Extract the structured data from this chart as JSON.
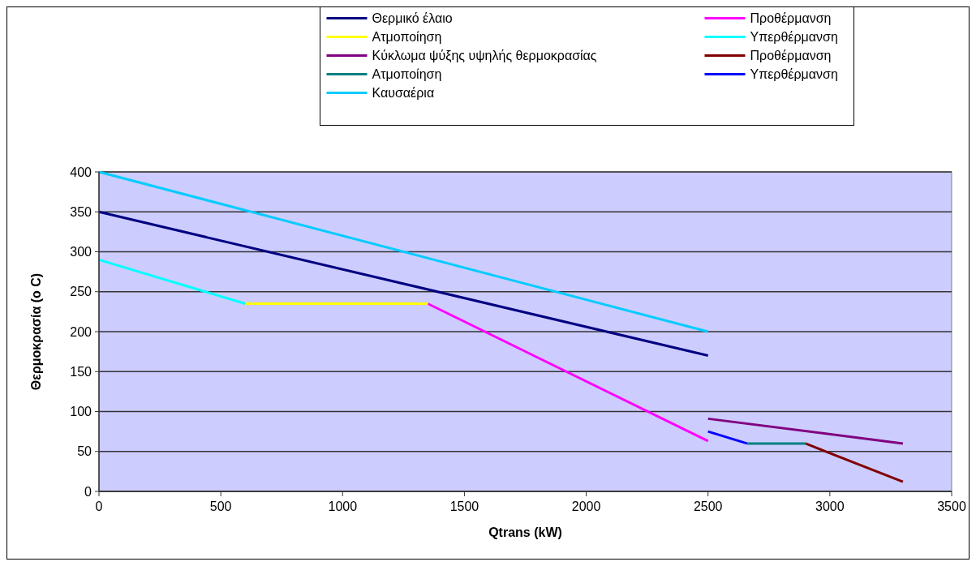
{
  "chart_data": {
    "type": "line",
    "xlabel": "Qtrans (kW)",
    "ylabel": "Θερμοκρασία (o C)",
    "xlim": [
      0,
      3500
    ],
    "xticks": [
      0,
      500,
      1000,
      1500,
      2000,
      2500,
      3000,
      3500
    ],
    "ylim": [
      0,
      400
    ],
    "yticks": [
      0,
      50,
      100,
      150,
      200,
      250,
      300,
      350,
      400
    ],
    "grid": "y",
    "legend": "top",
    "marker": "none",
    "line_style": "solid",
    "series": [
      {
        "name": "Θερμικό έλαιο",
        "color": "#000080",
        "x": [
          0,
          2500
        ],
        "values": [
          350,
          170
        ]
      },
      {
        "name": "Προθέρμανση",
        "color": "#ff00ff",
        "x": [
          1350,
          2500
        ],
        "values": [
          235,
          63
        ]
      },
      {
        "name": "Ατμοποίηση",
        "color": "#ffff00",
        "x": [
          600,
          1350
        ],
        "values": [
          235,
          235
        ]
      },
      {
        "name": "Υπερθέρμανση",
        "color": "#00ffff",
        "x": [
          0,
          600
        ],
        "values": [
          290,
          235
        ]
      },
      {
        "name": "Κύκλωμα ψύξης υψηλής θερμοκρασίας",
        "color": "#800080",
        "x": [
          2500,
          3300
        ],
        "values": [
          91,
          60
        ]
      },
      {
        "name": "Προθέρμανση",
        "color": "#800000",
        "x": [
          2900,
          3300
        ],
        "values": [
          60,
          12
        ]
      },
      {
        "name": "Ατμοποίηση",
        "color": "#008080",
        "x": [
          2660,
          2900
        ],
        "values": [
          60,
          60
        ]
      },
      {
        "name": "Υπερθέρμανση",
        "color": "#0000ff",
        "x": [
          2500,
          2660
        ],
        "values": [
          75,
          60
        ]
      },
      {
        "name": "Καυσαέρια",
        "color": "#00ccff",
        "x": [
          0,
          2500
        ],
        "values": [
          400,
          200
        ]
      }
    ]
  }
}
